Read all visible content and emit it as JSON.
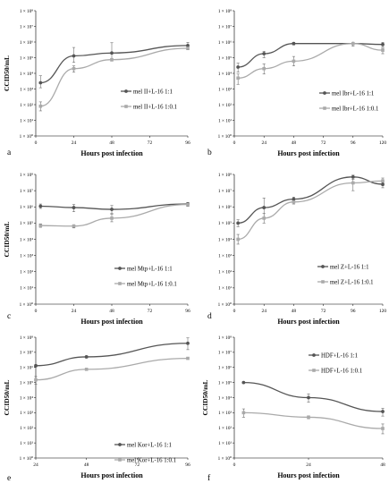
{
  "chart_data": [
    {
      "panel_label": "a",
      "type": "line",
      "ylabel": "CCID50/mL",
      "xlabel": "Hours post infection",
      "y_scale": "log",
      "ylim": [
        1,
        100000000
      ],
      "xlim": [
        0,
        96
      ],
      "x_ticks": [
        0,
        24,
        48,
        72,
        96
      ],
      "y_tick_labels": [
        "1 × 10⁰",
        "1 × 10¹",
        "1 × 10²",
        "1 × 10³",
        "1 × 10⁴",
        "1 × 10⁵",
        "1 × 10⁶",
        "1 × 10⁷",
        "1 × 10⁸"
      ],
      "legend_position": "right",
      "series": [
        {
          "name": "mel II+L-16 1:1",
          "color": "#555555",
          "x": [
            3,
            24,
            48,
            96
          ],
          "y": [
            2500,
            130000,
            200000,
            600000
          ],
          "err_low": [
            1200,
            50000,
            70000,
            350000
          ],
          "err_high": [
            7000,
            450000,
            900000,
            950000
          ]
        },
        {
          "name": "mel II+L-16 1:0.1",
          "color": "#aaaaaa",
          "x": [
            3,
            24,
            48,
            96
          ],
          "y": [
            80,
            20000,
            75000,
            400000
          ],
          "err_low": [
            40,
            12000,
            60000,
            320000
          ],
          "err_high": [
            150,
            30000,
            90000,
            480000
          ]
        }
      ]
    },
    {
      "panel_label": "b",
      "type": "line",
      "ylabel": "",
      "xlabel": "Hours post infection",
      "y_scale": "log",
      "ylim": [
        1,
        100000000
      ],
      "xlim": [
        0,
        120
      ],
      "x_ticks": [
        0,
        24,
        48,
        72,
        96,
        120
      ],
      "y_tick_labels": [
        "1 × 10⁰",
        "1 × 10¹",
        "1 × 10²",
        "1 × 10³",
        "1 × 10⁴",
        "1 × 10⁵",
        "1 × 10⁶",
        "1 × 10⁷",
        "1 × 10⁸"
      ],
      "legend_position": "right",
      "series": [
        {
          "name": "mel Ibr+L-16 1:1",
          "color": "#555555",
          "x": [
            3,
            24,
            48,
            96,
            120
          ],
          "y": [
            25000,
            180000,
            800000,
            800000,
            700000
          ],
          "err_low": [
            12000,
            100000,
            650000,
            650000,
            500000
          ],
          "err_high": [
            45000,
            260000,
            950000,
            950000,
            950000
          ]
        },
        {
          "name": "mel Ibr+L-16 1:0.1",
          "color": "#aaaaaa",
          "x": [
            3,
            24,
            48,
            96,
            120
          ],
          "y": [
            5000,
            20000,
            60000,
            800000,
            300000
          ],
          "err_low": [
            2000,
            9000,
            30000,
            550000,
            180000
          ],
          "err_high": [
            9000,
            40000,
            120000,
            950000,
            400000
          ]
        }
      ]
    },
    {
      "panel_label": "c",
      "type": "line",
      "ylabel": "CCID50/mL",
      "xlabel": "Hours post infection",
      "y_scale": "log",
      "ylim": [
        1,
        100000000
      ],
      "xlim": [
        0,
        96
      ],
      "x_ticks": [
        0,
        24,
        48,
        72,
        96
      ],
      "y_tick_labels": [
        "1 × 10⁰",
        "1 × 10¹",
        "1 × 10²",
        "1 × 10³",
        "1 × 10⁴",
        "1 × 10⁵",
        "1 × 10⁶",
        "1 × 10⁷",
        "1 × 10⁸"
      ],
      "legend_position": "bottom-right",
      "series": [
        {
          "name": "mel Mtp+L-16 1:1",
          "color": "#555555",
          "x": [
            3,
            24,
            48,
            96
          ],
          "y": [
            1100000,
            900000,
            700000,
            1500000
          ],
          "err_low": [
            800000,
            500000,
            400000,
            1100000
          ],
          "err_high": [
            1500000,
            1400000,
            1200000,
            1900000
          ]
        },
        {
          "name": "mel Mtp+L-16 1:0.1",
          "color": "#aaaaaa",
          "x": [
            3,
            24,
            48,
            96
          ],
          "y": [
            70000,
            65000,
            200000,
            1400000
          ],
          "err_low": [
            55000,
            50000,
            120000,
            1100000
          ],
          "err_high": [
            90000,
            80000,
            350000,
            1700000
          ]
        }
      ]
    },
    {
      "panel_label": "d",
      "type": "line",
      "ylabel": "",
      "xlabel": "Hours post infection",
      "y_scale": "log",
      "ylim": [
        1,
        100000000
      ],
      "xlim": [
        0,
        120
      ],
      "x_ticks": [
        0,
        24,
        48,
        72,
        96,
        120
      ],
      "y_tick_labels": [
        "1 × 10⁰",
        "1 × 10¹",
        "1 × 10²",
        "1 × 10³",
        "1 × 10⁴",
        "1 × 10⁵",
        "1 × 10⁶",
        "1 × 10⁷",
        "1 × 10⁸"
      ],
      "legend_position": "bottom-right",
      "series": [
        {
          "name": "mel Z+L-16 1:1",
          "color": "#555555",
          "x": [
            3,
            24,
            48,
            96,
            120
          ],
          "y": [
            100000,
            900000,
            3000000,
            70000000,
            25000000
          ],
          "err_low": [
            60000,
            200000,
            2000000,
            50000000,
            15000000
          ],
          "err_high": [
            160000,
            3500000,
            4000000,
            90000000,
            35000000
          ]
        },
        {
          "name": "mel Z+L-16 1:0.1",
          "color": "#aaaaaa",
          "x": [
            3,
            24,
            48,
            96,
            120
          ],
          "y": [
            10000,
            200000,
            2000000,
            30000000,
            40000000
          ],
          "err_low": [
            5000,
            100000,
            1500000,
            10000000,
            20000000
          ],
          "err_high": [
            20000,
            400000,
            2700000,
            60000000,
            60000000
          ]
        }
      ]
    },
    {
      "panel_label": "e",
      "type": "line",
      "ylabel": "CCID50/mL",
      "xlabel": "Hours post infection",
      "y_scale": "log",
      "ylim": [
        1,
        100000000
      ],
      "xlim": [
        24,
        96
      ],
      "x_ticks": [
        24,
        48,
        72,
        96
      ],
      "y_tick_labels": [
        "1 × 10⁰",
        "1 × 10¹",
        "1 × 10²",
        "1 × 10³",
        "1 × 10⁴",
        "1 × 10⁵",
        "1 × 10⁶",
        "1 × 10⁷",
        "1 × 10⁸"
      ],
      "legend_position": "bottom-right",
      "series": [
        {
          "name": "mel Kor+L-16 1:1",
          "color": "#555555",
          "x": [
            24,
            48,
            96
          ],
          "y": [
            1300000,
            5000000,
            40000000
          ],
          "err_low": [
            1100000,
            4200000,
            15000000
          ],
          "err_high": [
            1500000,
            5800000,
            90000000
          ]
        },
        {
          "name": "mel Kor+L-16 1:0.1",
          "color": "#aaaaaa",
          "x": [
            24,
            48,
            96
          ],
          "y": [
            150000,
            750000,
            4000000
          ],
          "err_low": [
            80000,
            650000,
            3500000
          ],
          "err_high": [
            250000,
            850000,
            4500000
          ]
        }
      ]
    },
    {
      "panel_label": "f",
      "type": "line",
      "ylabel": "CCID50/mL",
      "xlabel": "Hours post infection",
      "y_scale": "log",
      "ylim": [
        1,
        100000000
      ],
      "xlim": [
        0,
        48
      ],
      "x_ticks": [
        0,
        24,
        48
      ],
      "y_tick_labels": [
        "1 × 10⁰",
        "1 × 10¹",
        "1 × 10²",
        "1 × 10³",
        "1 × 10⁴",
        "1 × 10⁵",
        "1 × 10⁶",
        "1 × 10⁷",
        "1 × 10⁸"
      ],
      "legend_position": "top-right",
      "series": [
        {
          "name": "HDF+L-16 1:1",
          "color": "#555555",
          "x": [
            3,
            24,
            48
          ],
          "y": [
            100000,
            10000,
            1200
          ],
          "err_low": [
            90000,
            5000,
            600
          ],
          "err_high": [
            110000,
            18000,
            2000
          ]
        },
        {
          "name": "HDF+L-16 1:0.1",
          "color": "#aaaaaa",
          "x": [
            3,
            24,
            48
          ],
          "y": [
            1000,
            500,
            90
          ],
          "err_low": [
            500,
            400,
            40
          ],
          "err_high": [
            1800,
            620,
            180
          ]
        }
      ]
    }
  ]
}
